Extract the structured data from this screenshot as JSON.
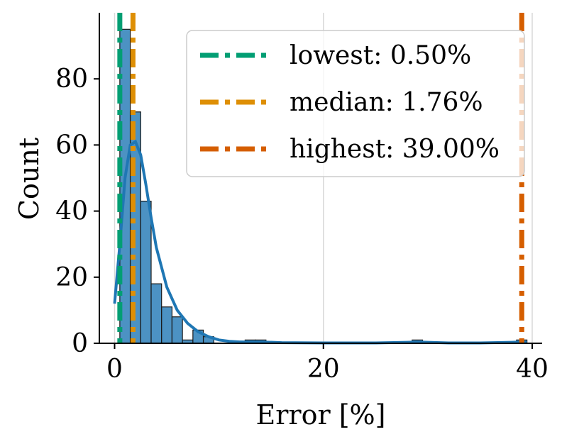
{
  "chart_data": {
    "type": "bar",
    "subtype": "histogram",
    "xlabel": "Error [%]",
    "ylabel": "Count",
    "xlim": [
      -1,
      41
    ],
    "ylim": [
      0,
      100
    ],
    "x_ticks": [
      0,
      20,
      40
    ],
    "y_ticks": [
      0,
      20,
      40,
      60,
      80
    ],
    "grid": "vertical",
    "bin_width": 1,
    "bins": [
      {
        "x0": 0.5,
        "x1": 1.5,
        "count": 95
      },
      {
        "x0": 1.5,
        "x1": 2.5,
        "count": 70
      },
      {
        "x0": 2.5,
        "x1": 3.5,
        "count": 43
      },
      {
        "x0": 3.5,
        "x1": 4.5,
        "count": 18
      },
      {
        "x0": 4.5,
        "x1": 5.5,
        "count": 11
      },
      {
        "x0": 5.5,
        "x1": 6.5,
        "count": 8
      },
      {
        "x0": 6.5,
        "x1": 7.5,
        "count": 1
      },
      {
        "x0": 7.5,
        "x1": 8.5,
        "count": 4
      },
      {
        "x0": 8.5,
        "x1": 9.5,
        "count": 2
      },
      {
        "x0": 12.5,
        "x1": 13.5,
        "count": 1
      },
      {
        "x0": 13.5,
        "x1": 14.5,
        "count": 1
      },
      {
        "x0": 28.5,
        "x1": 29.5,
        "count": 1
      },
      {
        "x0": 38.5,
        "x1": 39.5,
        "count": 1
      }
    ],
    "kde": {
      "x": [
        0,
        0.5,
        1,
        1.5,
        2,
        2.5,
        3,
        3.5,
        4,
        5,
        6,
        7,
        8,
        9,
        10,
        11,
        12,
        14,
        16,
        20,
        25,
        28,
        29,
        30,
        32,
        35,
        38,
        39,
        39.5
      ],
      "y": [
        12,
        30,
        50,
        60,
        61,
        57,
        48,
        38,
        29,
        17,
        10,
        6,
        3.5,
        2,
        1,
        0.6,
        0.4,
        0.4,
        0.2,
        0.1,
        0.1,
        0.3,
        0.4,
        0.3,
        0.1,
        0.1,
        0.3,
        0.4,
        0.3
      ]
    },
    "reference_lines": [
      {
        "label": "lowest: 0.50%",
        "x": 0.5,
        "color": "#029e73"
      },
      {
        "label": "median: 1.76%",
        "x": 1.76,
        "color": "#de8f05"
      },
      {
        "label": "highest: 39.00%",
        "x": 39.0,
        "color": "#d55e00"
      }
    ],
    "legend_position": "top-right",
    "colors": {
      "bars": "#1f77b4",
      "kde": "#1f77b4"
    }
  }
}
